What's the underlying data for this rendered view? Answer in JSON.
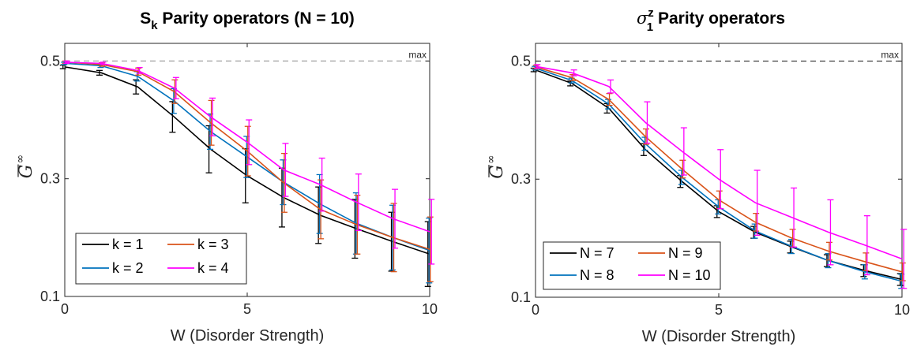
{
  "chart_data": [
    {
      "type": "line",
      "title_main": "S",
      "title_sub": "k",
      "title_rest": " Parity operators (N = 10)",
      "xlabel": "W (Disorder Strength)",
      "ylabel": "G",
      "ylabel_sup": "∞",
      "xlim": [
        0,
        10
      ],
      "ylim": [
        0.1,
        0.53
      ],
      "xticks": [
        0,
        5,
        10
      ],
      "yticks": [
        0.1,
        0.3,
        0.5
      ],
      "ytick_labels": [
        "0.1",
        "0.3",
        "0.5"
      ],
      "xtick_labels": [
        "0",
        "5",
        "10"
      ],
      "reference_line": {
        "y": 0.5,
        "label": "max",
        "style": "dashed",
        "color": "#a0a0a0"
      },
      "grid": false,
      "legend_position": "bottom-left",
      "legend_columns": 2,
      "x": [
        0,
        1,
        2,
        3,
        4,
        5,
        6,
        7,
        8,
        9,
        10
      ],
      "series": [
        {
          "name": "k = 1",
          "color": "#000000",
          "values": [
            0.49,
            0.48,
            0.456,
            0.405,
            0.35,
            0.305,
            0.268,
            0.238,
            0.215,
            0.193,
            0.172
          ],
          "errors": [
            0.003,
            0.004,
            0.012,
            0.026,
            0.04,
            0.046,
            0.05,
            0.048,
            0.05,
            0.05,
            0.055
          ]
        },
        {
          "name": "k = 2",
          "color": "#0072bd",
          "values": [
            0.496,
            0.492,
            0.474,
            0.432,
            0.38,
            0.337,
            0.294,
            0.257,
            0.224,
            0.2,
            0.178
          ],
          "errors": [
            0.002,
            0.003,
            0.008,
            0.021,
            0.03,
            0.035,
            0.038,
            0.05,
            0.052,
            0.055,
            0.055
          ]
        },
        {
          "name": "k = 3",
          "color": "#d95319",
          "values": [
            0.498,
            0.494,
            0.482,
            0.448,
            0.395,
            0.347,
            0.293,
            0.248,
            0.222,
            0.2,
            0.18
          ],
          "errors": [
            0.002,
            0.003,
            0.006,
            0.02,
            0.038,
            0.042,
            0.05,
            0.05,
            0.05,
            0.058,
            0.055
          ]
        },
        {
          "name": "k = 4",
          "color": "#ff00ff",
          "values": [
            0.498,
            0.496,
            0.484,
            0.454,
            0.405,
            0.362,
            0.315,
            0.29,
            0.26,
            0.232,
            0.21
          ],
          "errors": [
            0.002,
            0.002,
            0.005,
            0.018,
            0.032,
            0.038,
            0.045,
            0.045,
            0.048,
            0.05,
            0.055
          ]
        }
      ]
    },
    {
      "type": "line",
      "title_main": "σ",
      "title_sub": "1",
      "title_sup": "z",
      "title_rest": " Parity operators",
      "xlabel": "W (Disorder Strength)",
      "ylabel": "G",
      "ylabel_sup": "∞",
      "xlim": [
        0,
        10
      ],
      "ylim": [
        0.1,
        0.53
      ],
      "xticks": [
        0,
        5,
        10
      ],
      "yticks": [
        0.1,
        0.3,
        0.5
      ],
      "ytick_labels": [
        "0.1",
        "0.3",
        "0.5"
      ],
      "xtick_labels": [
        "0",
        "5",
        "10"
      ],
      "reference_line": {
        "y": 0.5,
        "label": "max",
        "style": "dashed",
        "color": "#404040"
      },
      "grid": false,
      "legend_position": "bottom-left",
      "legend_columns": 2,
      "x": [
        0,
        1,
        2,
        3,
        4,
        5,
        6,
        7,
        8,
        9,
        10
      ],
      "series": [
        {
          "name": "N = 7",
          "color": "#000000",
          "values": [
            0.485,
            0.462,
            0.42,
            0.35,
            0.296,
            0.245,
            0.21,
            0.185,
            0.162,
            0.145,
            0.13
          ],
          "errors": [
            0.003,
            0.004,
            0.008,
            0.01,
            0.01,
            0.01,
            0.01,
            0.01,
            0.01,
            0.01,
            0.01
          ]
        },
        {
          "name": "N = 8",
          "color": "#0072bd",
          "values": [
            0.488,
            0.467,
            0.427,
            0.36,
            0.303,
            0.253,
            0.212,
            0.186,
            0.162,
            0.143,
            0.127
          ],
          "errors": [
            0.003,
            0.004,
            0.008,
            0.011,
            0.012,
            0.012,
            0.012,
            0.012,
            0.012,
            0.012,
            0.012
          ]
        },
        {
          "name": "N = 9",
          "color": "#d95319",
          "values": [
            0.49,
            0.472,
            0.435,
            0.372,
            0.317,
            0.265,
            0.227,
            0.2,
            0.178,
            0.16,
            0.143
          ],
          "errors": [
            0.003,
            0.005,
            0.01,
            0.013,
            0.015,
            0.015,
            0.015,
            0.015,
            0.015,
            0.015,
            0.015
          ]
        },
        {
          "name": "N = 10",
          "color": "#ff00ff",
          "values": [
            0.491,
            0.48,
            0.457,
            0.396,
            0.347,
            0.3,
            0.26,
            0.235,
            0.21,
            0.188,
            0.165
          ],
          "errors": [
            0.003,
            0.005,
            0.011,
            0.035,
            0.04,
            0.05,
            0.055,
            0.05,
            0.055,
            0.05,
            0.05
          ]
        }
      ]
    }
  ]
}
